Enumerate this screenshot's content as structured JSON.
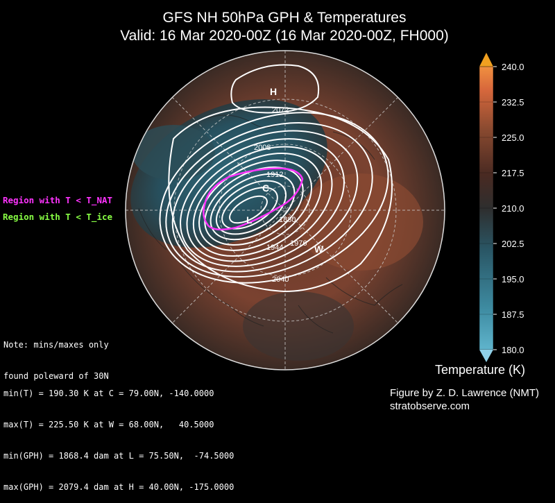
{
  "title_line1": "GFS NH 50hPa GPH & Temperatures",
  "title_line2": "Valid: 16 Mar 2020-00Z  (16 Mar 2020-00Z, FH000)",
  "legend": {
    "nat": "Region with T < T_NAT",
    "ice": "Region with T < T_ice",
    "nat_color": "#ff33ff",
    "ice_color": "#88ff44"
  },
  "note": {
    "line1": "Note: mins/maxes only",
    "line2": "found poleward of 30N"
  },
  "stats": {
    "min_t": "min(T) = 190.30 K at C = 79.00N, -140.0000",
    "max_t": "max(T) = 225.50 K at W = 68.00N,   40.5000",
    "min_gph": "min(GPH) = 1868.4 dam at L = 75.50N,  -74.5000",
    "max_gph": "max(GPH) = 2079.4 dam at H = 40.00N, -175.0000"
  },
  "credit": {
    "line1": "Figure by Z. D. Lawrence (NMT)",
    "line2": "stratobserve.com"
  },
  "colorbar": {
    "label": "Temperature (K)",
    "ticks": [
      "240.0",
      "232.5",
      "225.0",
      "217.5",
      "210.0",
      "202.5",
      "195.0",
      "187.5",
      "180.0"
    ],
    "min": 180.0,
    "max": 240.0
  },
  "map_labels": {
    "H": "H",
    "L": "L",
    "C": "C",
    "W": "W",
    "c2072": "2072",
    "c2008": "2008",
    "c1912": "1912",
    "c1880": "1880",
    "c1944": "1944",
    "c1976": "1976",
    "c2040": "2040"
  }
}
